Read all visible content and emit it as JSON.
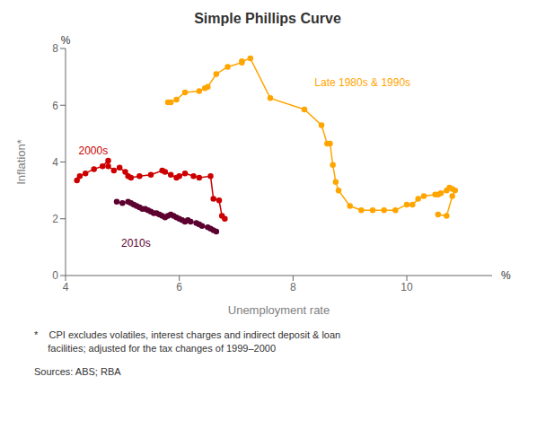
{
  "chart_data": {
    "type": "line",
    "title": "Simple Phillips Curve",
    "xlabel": "Unemployment rate",
    "ylabel": "Inflation*",
    "xunit": "%",
    "yunit": "%",
    "xlim": [
      4,
      11.5
    ],
    "ylim": [
      0,
      8
    ],
    "xticks": [
      4,
      6,
      8,
      10
    ],
    "yticks": [
      0,
      2,
      4,
      6,
      8
    ],
    "marker": "circle",
    "grid": false,
    "series": [
      {
        "color": "#FFA500",
        "x": [
          5.8,
          5.85,
          5.95,
          6.1,
          6.35,
          6.45,
          6.5,
          6.65,
          6.85,
          7.1,
          7.1,
          7.25,
          7.6,
          8.2,
          8.5,
          8.6,
          8.65,
          8.7,
          8.75,
          8.8,
          9.0,
          9.2,
          9.4,
          9.6,
          9.8,
          10.0,
          10.1,
          10.2,
          10.3,
          10.5,
          10.55,
          10.6,
          10.7,
          10.75,
          10.8,
          10.85,
          10.8,
          10.7,
          10.55
        ],
        "values": [
          6.1,
          6.1,
          6.2,
          6.45,
          6.5,
          6.6,
          6.65,
          7.1,
          7.35,
          7.5,
          7.55,
          7.65,
          6.25,
          5.85,
          5.3,
          4.65,
          4.65,
          3.9,
          3.3,
          3.0,
          2.45,
          2.3,
          2.3,
          2.3,
          2.3,
          2.5,
          2.5,
          2.7,
          2.8,
          2.85,
          2.85,
          2.9,
          3.0,
          3.1,
          3.05,
          3.0,
          2.8,
          2.1,
          2.15
        ]
      },
      {
        "color": "#CC0000",
        "x": [
          4.2,
          4.25,
          4.35,
          4.5,
          4.65,
          4.75,
          4.75,
          4.85,
          4.95,
          5.05,
          5.1,
          5.15,
          5.3,
          5.5,
          5.7,
          5.75,
          5.85,
          5.95,
          6.0,
          6.1,
          6.25,
          6.35,
          6.55,
          6.6,
          6.7,
          6.75,
          6.8
        ],
        "values": [
          3.35,
          3.5,
          3.6,
          3.75,
          3.85,
          4.05,
          3.85,
          3.7,
          3.8,
          3.65,
          3.5,
          3.45,
          3.5,
          3.55,
          3.7,
          3.65,
          3.55,
          3.45,
          3.5,
          3.6,
          3.5,
          3.45,
          3.5,
          2.7,
          2.65,
          2.1,
          2.0
        ]
      },
      {
        "color": "#5C0030",
        "x": [
          4.9,
          5.0,
          5.1,
          5.15,
          5.2,
          5.25,
          5.3,
          5.35,
          5.4,
          5.45,
          5.5,
          5.55,
          5.6,
          5.65,
          5.7,
          5.75,
          5.8,
          5.85,
          5.9,
          5.95,
          6.0,
          6.05,
          6.1,
          6.15,
          6.2,
          6.3,
          6.35,
          6.4,
          6.5,
          6.55,
          6.6,
          6.65
        ],
        "values": [
          2.6,
          2.55,
          2.6,
          2.55,
          2.5,
          2.45,
          2.4,
          2.35,
          2.35,
          2.3,
          2.25,
          2.2,
          2.2,
          2.15,
          2.1,
          2.05,
          2.1,
          2.15,
          2.1,
          2.05,
          2.0,
          1.95,
          1.9,
          1.95,
          1.9,
          1.85,
          1.8,
          1.75,
          1.7,
          1.65,
          1.6,
          1.55
        ]
      }
    ],
    "annotations": [
      {
        "text": "Late 1980s & 1990s",
        "x": 8.3,
        "y": 6.8,
        "color": "#FFA500"
      },
      {
        "text": "2000s",
        "x": 4.15,
        "y": 4.4,
        "color": "#CC0000"
      },
      {
        "text": "2010s",
        "x": 4.9,
        "y": 1.15,
        "color": "#5C0030"
      }
    ],
    "footnotes": [
      "*    CPI excludes volatiles, interest charges and indirect deposit & loan\n     facilities; adjusted for the tax changes of 1999–2000",
      "Sources: ABS; RBA"
    ]
  }
}
